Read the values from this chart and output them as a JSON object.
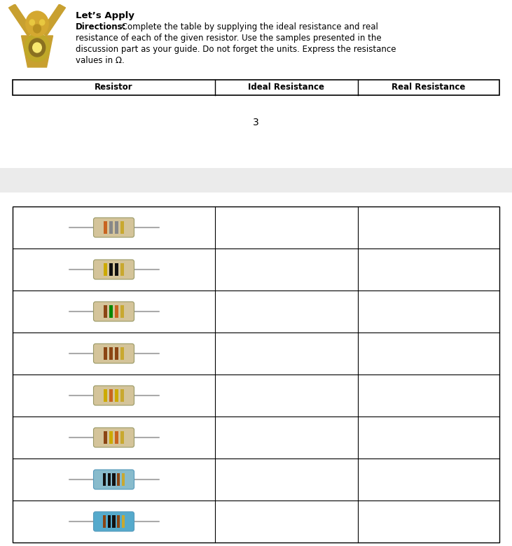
{
  "title": "Let’s Apply",
  "directions_bold": "Directions:",
  "directions_normal": " Complete the table by supplying the ideal resistance and real resistance of each of the given resistor. Use the samples presented in the discussion part as your guide. Do not forget the units. Express the resistance values in Ω.",
  "table_headers": [
    "Resistor",
    "Ideal Resistance",
    "Real Resistance"
  ],
  "num_rows": 8,
  "page_number": "3",
  "bg_color": "#ffffff",
  "light_gray": "#f0f0f0",
  "gray_band": "#ebebeb",
  "fig_width": 7.31,
  "fig_height": 7.8,
  "resistor_configs": [
    {
      "body": "#d4c49a",
      "bands": [
        "#c86420",
        "#888888",
        "#888888",
        "#c8a830"
      ],
      "blue": false
    },
    {
      "body": "#d4c49a",
      "bands": [
        "#ccaa00",
        "#111111",
        "#111111",
        "#c8a830"
      ],
      "blue": false
    },
    {
      "body": "#d4c49a",
      "bands": [
        "#8B4513",
        "#008800",
        "#c86420",
        "#c8a830"
      ],
      "blue": false
    },
    {
      "body": "#d4c49a",
      "bands": [
        "#8B4513",
        "#8B4513",
        "#8B4513",
        "#c8a830"
      ],
      "blue": false
    },
    {
      "body": "#d4c49a",
      "bands": [
        "#ccaa00",
        "#c86420",
        "#ccaa00",
        "#c8a830"
      ],
      "blue": false
    },
    {
      "body": "#d4c49a",
      "bands": [
        "#8B4513",
        "#ccaa00",
        "#c86420",
        "#c8a830"
      ],
      "blue": false
    },
    {
      "body": "#88bbcc",
      "bands": [
        "#111111",
        "#111111",
        "#111111",
        "#8B4513",
        "#c8a830"
      ],
      "blue": true
    },
    {
      "body": "#55aacc",
      "bands": [
        "#8B4513",
        "#111111",
        "#111111",
        "#8B4513",
        "#c8a830"
      ],
      "blue": true
    }
  ]
}
